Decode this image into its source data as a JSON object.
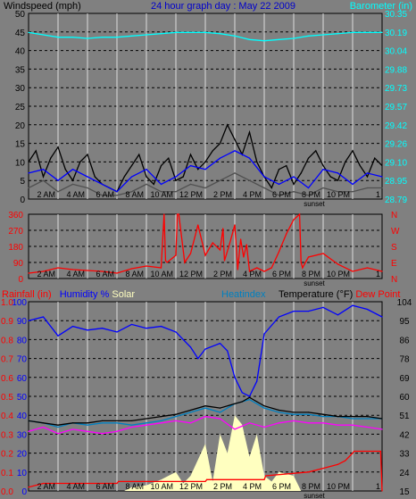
{
  "colors": {
    "background": "#808080",
    "plot_bg": "#000000",
    "grid": "#dcdcdc",
    "wind_axis": "#000000",
    "baro_axis": "#00ffff",
    "rain_axis": "#ff0000",
    "humidity_axis": "#0000ff",
    "temp_axis": "#000000",
    "dir_axis": "#ff0000"
  },
  "header": {
    "wind_title": "Windspeed (mph)",
    "graph_title": "24 hour graph day : May 22 2009",
    "baro_title": "Barometer (in)"
  },
  "time_axis": {
    "labels": [
      "2 AM",
      "4 AM",
      "6 AM",
      "8 AM",
      "10 AM",
      "12 PM",
      "2 PM",
      "4 PM",
      "6 PM",
      "8 PM",
      "10 PM",
      "1"
    ],
    "label_hours": [
      2,
      4,
      6,
      8,
      10,
      12,
      14,
      16,
      18,
      20,
      22,
      24
    ],
    "sunset_label": "sunset",
    "sunset_hour": 20.0
  },
  "chart_data": [
    {
      "type": "line",
      "name": "wind-panel",
      "x_range_hours": [
        0,
        24
      ],
      "left_axis": {
        "ticks": [
          "0",
          "5",
          "10",
          "15",
          "20",
          "25",
          "30",
          "35",
          "40",
          "45",
          "50"
        ],
        "ylim": [
          0,
          50
        ]
      },
      "right_axis": {
        "ticks": [
          "28.79",
          "28.95",
          "29.10",
          "29.26",
          "29.42",
          "29.57",
          "29.73",
          "29.88",
          "30.04",
          "30.19",
          "30.35"
        ],
        "ylim": [
          28.79,
          30.35
        ]
      },
      "grid": true,
      "series": [
        {
          "color": "#00ffff",
          "axis": "right",
          "x": [
            0,
            1,
            2,
            3,
            4,
            5,
            6,
            7,
            8,
            9,
            10,
            11,
            12,
            13,
            14,
            15,
            16,
            17,
            18,
            19,
            20,
            21,
            22,
            23,
            24
          ],
          "values": [
            30.19,
            30.17,
            30.15,
            30.15,
            30.14,
            30.15,
            30.15,
            30.16,
            30.17,
            30.18,
            30.19,
            30.19,
            30.19,
            30.18,
            30.16,
            30.13,
            30.12,
            30.13,
            30.14,
            30.16,
            30.17,
            30.18,
            30.19,
            30.19,
            30.19
          ]
        },
        {
          "color": "#000000",
          "axis": "left",
          "x": [
            0,
            0.5,
            1,
            1.5,
            2,
            2.5,
            3,
            3.5,
            4,
            4.5,
            5,
            5.5,
            6,
            6.5,
            7,
            7.5,
            8,
            8.5,
            9,
            9.5,
            10,
            10.5,
            11,
            11.5,
            12,
            12.5,
            13,
            13.5,
            14,
            14.5,
            15,
            15.5,
            16,
            16.5,
            17,
            17.5,
            18,
            18.5,
            19,
            19.5,
            20,
            20.5,
            21,
            21.5,
            22,
            22.5,
            23,
            23.5,
            24
          ],
          "values": [
            10,
            13,
            6,
            11,
            14,
            8,
            5,
            10,
            12,
            6,
            4,
            3,
            2,
            6,
            9,
            12,
            6,
            4,
            9,
            11,
            5,
            6,
            12,
            8,
            10,
            13,
            15,
            20,
            16,
            12,
            18,
            10,
            6,
            3,
            8,
            9,
            4,
            7,
            11,
            13,
            9,
            6,
            5,
            10,
            13,
            9,
            6,
            11,
            9
          ]
        },
        {
          "color": "#0000ff",
          "axis": "left",
          "x": [
            0,
            1,
            2,
            3,
            4,
            5,
            6,
            7,
            8,
            9,
            10,
            11,
            12,
            13,
            14,
            15,
            16,
            17,
            18,
            19,
            20,
            21,
            22,
            23,
            24
          ],
          "values": [
            7,
            8,
            5,
            8,
            6,
            4,
            2,
            6,
            8,
            4,
            6,
            9,
            8,
            11,
            13,
            11,
            6,
            4,
            6,
            3,
            8,
            7,
            4,
            7,
            6
          ]
        },
        {
          "color": "#505050",
          "axis": "left",
          "x": [
            0,
            1,
            2,
            3,
            4,
            5,
            6,
            7,
            8,
            9,
            10,
            11,
            12,
            13,
            14,
            15,
            16,
            17,
            18,
            19,
            20,
            21,
            22,
            23,
            24
          ],
          "values": [
            3,
            5,
            2,
            4,
            3,
            1,
            1,
            2,
            4,
            2,
            2,
            4,
            3,
            5,
            7,
            5,
            3,
            1,
            2,
            1,
            3,
            2,
            2,
            3,
            3
          ]
        }
      ]
    },
    {
      "type": "line",
      "name": "wind-direction-panel",
      "x_range_hours": [
        0,
        24
      ],
      "left_axis": {
        "ticks": [
          "0",
          "90",
          "180",
          "270",
          "360"
        ],
        "ylim": [
          0,
          360
        ]
      },
      "right_axis": {
        "ticks": [
          "N",
          "E",
          "S",
          "W",
          "N"
        ]
      },
      "grid": true,
      "series": [
        {
          "color": "#ff0000",
          "x": [
            0,
            1,
            2,
            3,
            4,
            5,
            6,
            7,
            8,
            9,
            9.2,
            9.3,
            9.4,
            10,
            10.1,
            10.2,
            10.6,
            11,
            11.5,
            12,
            12.5,
            13,
            13.2,
            13.3,
            13.6,
            14,
            14.2,
            14.4,
            14.6,
            14.8,
            15,
            15.5,
            16,
            16.5,
            17,
            17.5,
            18,
            18.4,
            18.5,
            18.6,
            19,
            20,
            21,
            22,
            23,
            24
          ],
          "values": [
            30,
            40,
            60,
            50,
            45,
            40,
            30,
            55,
            70,
            60,
            360,
            100,
            90,
            130,
            360,
            360,
            90,
            140,
            300,
            130,
            200,
            160,
            280,
            100,
            180,
            300,
            50,
            220,
            120,
            190,
            40,
            60,
            40,
            60,
            150,
            250,
            330,
            360,
            90,
            60,
            120,
            140,
            80,
            40,
            60,
            40
          ]
        }
      ]
    },
    {
      "type": "line",
      "name": "weather-panel",
      "x_range_hours": [
        0,
        24
      ],
      "labels": {
        "rain": "Rainfall (in)",
        "humidity": "Humidity %",
        "solar": "Solar",
        "heatindex": "Heatindex",
        "temperature": "Temperature (°F)",
        "dewpoint": "Dew Point"
      },
      "rain_axis": {
        "ticks": [
          "0.0",
          "0.1",
          "0.2",
          "0.3",
          "0.4",
          "0.5",
          "0.6",
          "0.7",
          "0.8",
          "0.9",
          "1.0"
        ],
        "ylim": [
          0,
          1.0
        ]
      },
      "humidity_axis": {
        "ticks": [
          "0",
          "10",
          "20",
          "30",
          "40",
          "50",
          "60",
          "70",
          "80",
          "90",
          "100"
        ],
        "ylim": [
          0,
          100
        ]
      },
      "temp_axis": {
        "ticks": [
          "15",
          "24",
          "33",
          "42",
          "51",
          "60",
          "69",
          "78",
          "86",
          "95",
          "104"
        ],
        "ylim": [
          15,
          104
        ]
      },
      "grid": true,
      "series": [
        {
          "name": "Solar",
          "color": "#ffffc0",
          "axis": "humidity",
          "fill": true,
          "x": [
            0,
            6.5,
            7,
            8,
            9,
            10,
            10.5,
            11,
            12,
            12.5,
            13,
            13.5,
            14,
            14.5,
            15,
            15.5,
            16,
            16.5,
            17,
            18,
            18.5,
            24
          ],
          "values": [
            0,
            0,
            2,
            3,
            6,
            10,
            4,
            8,
            25,
            5,
            30,
            20,
            40,
            35,
            18,
            30,
            8,
            5,
            10,
            8,
            0,
            0
          ]
        },
        {
          "name": "Rainfall (in)",
          "color": "#ff0000",
          "axis": "rain",
          "x": [
            0,
            1,
            6,
            6.1,
            9,
            12,
            12.1,
            16,
            16.1,
            19,
            20,
            21,
            21.5,
            22,
            22.1,
            23.9,
            24
          ],
          "values": [
            0.02,
            0.04,
            0.04,
            0.05,
            0.05,
            0.05,
            0.06,
            0.06,
            0.08,
            0.1,
            0.12,
            0.14,
            0.16,
            0.2,
            0.21,
            0.21,
            0.0
          ]
        },
        {
          "name": "Humidity %",
          "color": "#0000ff",
          "axis": "humidity",
          "x": [
            0,
            1,
            2,
            3,
            4,
            5,
            6,
            7,
            8,
            9,
            10,
            11,
            11.5,
            12,
            13,
            13.5,
            14,
            14.5,
            15,
            15.5,
            16,
            17,
            18,
            19,
            20,
            21,
            22,
            23,
            24
          ],
          "values": [
            90,
            92,
            82,
            87,
            85,
            86,
            84,
            88,
            86,
            87,
            84,
            76,
            70,
            75,
            78,
            74,
            60,
            52,
            50,
            58,
            83,
            92,
            95,
            95,
            97,
            93,
            98,
            96,
            92
          ]
        },
        {
          "name": "Dew Point",
          "color": "#ff00ff",
          "axis": "temp",
          "x": [
            0,
            1,
            2,
            3,
            4,
            5,
            6,
            7,
            8,
            9,
            10,
            11,
            12,
            13,
            14,
            15,
            16,
            17,
            18,
            19,
            20,
            21,
            22,
            23,
            24
          ],
          "values": [
            43,
            45,
            42,
            44,
            43,
            42,
            43,
            45,
            46,
            47,
            48,
            47,
            50,
            49,
            44,
            47,
            45,
            47,
            48,
            47,
            47,
            46,
            46,
            45,
            44
          ]
        },
        {
          "name": "Heatindex",
          "color": "#0080c0",
          "axis": "temp",
          "x": [
            0,
            1,
            2,
            3,
            4,
            5,
            6,
            7,
            8,
            9,
            10,
            11,
            12,
            13,
            14,
            14.5,
            15,
            15.5,
            16,
            17,
            18,
            19,
            20,
            21,
            22,
            23,
            24
          ],
          "values": [
            48,
            47,
            45,
            47,
            46,
            47,
            47,
            46,
            47,
            48,
            50,
            52,
            54,
            52,
            56,
            57,
            58,
            56,
            54,
            52,
            51,
            51,
            50,
            50,
            49,
            49,
            49
          ]
        },
        {
          "name": "Temperature (°F)",
          "color": "#000000",
          "axis": "temp",
          "x": [
            0,
            1,
            2,
            3,
            4,
            5,
            6,
            7,
            8,
            9,
            10,
            11,
            12,
            13,
            14,
            14.5,
            15,
            15.5,
            16,
            17,
            18,
            19,
            20,
            21,
            22,
            23,
            24
          ],
          "values": [
            48,
            47,
            46,
            47,
            47,
            48,
            48,
            48,
            49,
            50,
            51,
            53,
            55,
            54,
            56,
            57,
            59,
            57,
            55,
            53,
            52,
            52,
            51,
            50,
            50,
            50,
            49
          ]
        }
      ]
    }
  ]
}
